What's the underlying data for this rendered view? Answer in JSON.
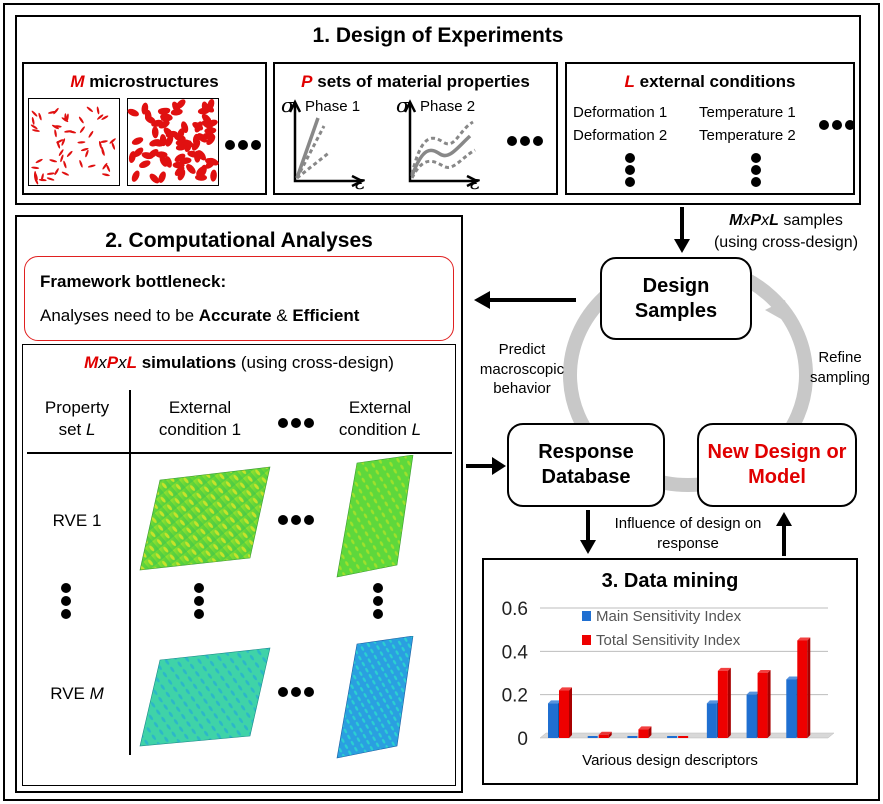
{
  "doe": {
    "title": "1. Design of Experiments",
    "micro": {
      "letter": "M",
      "text": " microstructures"
    },
    "props": {
      "letter": "P",
      "text": " sets of material properties",
      "phase1": "Phase 1",
      "phase2": "Phase 2",
      "sigma": "σ",
      "eps": "ε"
    },
    "ext": {
      "letter": "L",
      "text": " external conditions",
      "def1": "Deformation 1",
      "def2": "Deformation 2",
      "temp1": "Temperature 1",
      "temp2": "Temperature 2"
    }
  },
  "samples_note": {
    "M": "M",
    "x1": "x",
    "P": "P",
    "x2": "x",
    "L": "L",
    "text": " samples",
    "sub": "(using cross-design)"
  },
  "ca": {
    "title": "2. Computational Analyses",
    "bottleneck_title": "Framework bottleneck:",
    "bottleneck_pre": "Analyses need to be ",
    "accurate": "Accurate",
    "amp": " & ",
    "efficient": "Efficient",
    "sim": {
      "M": "M",
      "x1": "x",
      "P": "P",
      "x2": "x",
      "L": "L",
      "bold": " simulations",
      "rest": " (using cross-design)"
    },
    "col1a": "Property",
    "col1b": "set ",
    "col1c": "L",
    "col2a": "External",
    "col2b": "condition 1",
    "col3a": "External",
    "col3b": "condition ",
    "col3c": "L",
    "row1": "RVE 1",
    "row2a": "RVE ",
    "row2b": "M"
  },
  "cycle": {
    "design_samples": "Design Samples",
    "response_db": "Response Database",
    "new_design": "New Design or Model",
    "predict": "Predict macroscopic behavior",
    "refine": "Refine sampling",
    "influence": "Influence of design on response"
  },
  "dm": {
    "title": "3. Data mining",
    "xlabel": "Various design descriptors"
  },
  "chart_data": {
    "type": "bar",
    "title": "",
    "xlabel": "Various design descriptors",
    "ylabel": "",
    "ylim": [
      0,
      0.6
    ],
    "yticks": [
      "0",
      "0.2",
      "0.4",
      "0.6"
    ],
    "categories": [
      "",
      "",
      "",
      "",
      "",
      "",
      ""
    ],
    "series": [
      {
        "name": "Main Sensitivity Index",
        "color": "#1f6fd1",
        "values": [
          0.16,
          0.0,
          0.0,
          0.0,
          0.16,
          0.2,
          0.27
        ]
      },
      {
        "name": "Total Sensitivity Index",
        "color": "#ee0000",
        "values": [
          0.22,
          0.015,
          0.04,
          0.0,
          0.31,
          0.3,
          0.45
        ]
      }
    ],
    "legend": "top-left",
    "grid": true
  }
}
